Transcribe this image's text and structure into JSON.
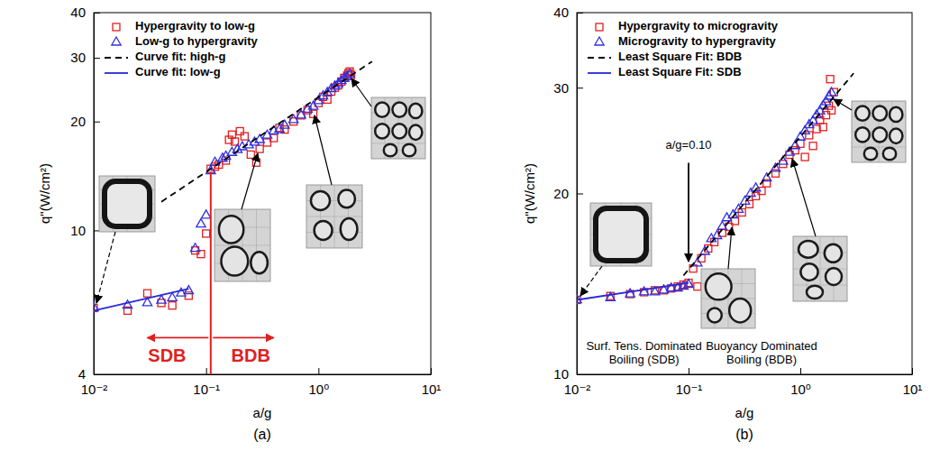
{
  "chart_data": [
    {
      "type": "scatter",
      "title": "(a)",
      "x_label": "a/g",
      "y_label": "q\"(W/cm²)",
      "log": true,
      "grid": false,
      "legend": "upper left",
      "xlim": [
        0.01,
        10
      ],
      "xticks": [
        {
          "value": 0.01,
          "label": "10⁻²"
        },
        {
          "value": 0.1,
          "label": "10⁻¹"
        },
        {
          "value": 1,
          "label": "10⁰"
        },
        {
          "value": 10,
          "label": "10¹"
        }
      ],
      "ylim": [
        4,
        40
      ],
      "yticks": [
        4,
        10,
        20,
        30,
        40
      ],
      "series": [
        {
          "name": "Hypergravity to low-g",
          "type": "scatter",
          "marker": "square",
          "color": "#e02020",
          "x": [
            0.01,
            0.02,
            0.03,
            0.04,
            0.05,
            0.07,
            0.08,
            0.09,
            0.1,
            0.11,
            0.12,
            0.13,
            0.15,
            0.16,
            0.17,
            0.18,
            0.2,
            0.22,
            0.25,
            0.28,
            0.3,
            0.35,
            0.4,
            0.45,
            0.5,
            0.6,
            0.7,
            0.8,
            0.9,
            1.0,
            1.1,
            1.2,
            1.3,
            1.4,
            1.5,
            1.6,
            1.7,
            1.8,
            1.85,
            1.9,
            1.95
          ],
          "values": [
            6.1,
            6.0,
            6.7,
            6.3,
            6.2,
            6.6,
            8.8,
            8.6,
            9.8,
            14.8,
            15.0,
            15.2,
            15.6,
            17.8,
            18.4,
            17.6,
            18.8,
            18.2,
            16.2,
            15.4,
            16.8,
            17.5,
            18.0,
            19.2,
            19.0,
            20.0,
            20.8,
            21.5,
            21.0,
            22.5,
            23.4,
            23.0,
            24.2,
            24.8,
            25.2,
            25.8,
            26.4,
            26.8,
            27.2,
            27.5,
            26.9
          ]
        },
        {
          "name": "Low-g to hypergravity",
          "type": "scatter",
          "marker": "triangle",
          "color": "#3030e0",
          "x": [
            0.01,
            0.02,
            0.03,
            0.04,
            0.05,
            0.06,
            0.07,
            0.08,
            0.09,
            0.1,
            0.11,
            0.12,
            0.14,
            0.15,
            0.17,
            0.19,
            0.21,
            0.24,
            0.27,
            0.3,
            0.35,
            0.4,
            0.45,
            0.5,
            0.6,
            0.7,
            0.8,
            0.9,
            1.0,
            1.1,
            1.2,
            1.3,
            1.4,
            1.5,
            1.6,
            1.7,
            1.8,
            1.9
          ],
          "values": [
            6.1,
            6.2,
            6.3,
            6.4,
            6.5,
            6.7,
            6.8,
            8.9,
            10.4,
            11.0,
            14.6,
            15.4,
            15.8,
            16.0,
            16.4,
            16.7,
            17.0,
            17.2,
            17.5,
            17.8,
            18.3,
            18.8,
            19.0,
            19.5,
            20.2,
            20.8,
            21.6,
            22.0,
            22.8,
            23.5,
            24.0,
            24.6,
            25.0,
            25.4,
            25.9,
            26.3,
            26.6,
            27.0
          ]
        },
        {
          "name": "Curve fit: high-g",
          "type": "line",
          "line_style": "dashed",
          "color": "#000000",
          "x": [
            0.04,
            3.0
          ],
          "values": [
            12.0,
            29.3
          ]
        },
        {
          "name": "Curve fit: low-g",
          "type": "line",
          "line_style": "solid",
          "color": "#2828d8",
          "x": [
            0.01,
            0.07
          ],
          "values": [
            6.0,
            6.9
          ]
        }
      ],
      "annotations": [
        {
          "type": "line",
          "x": [
            0.11,
            0.11
          ],
          "y": [
            4,
            14.5
          ],
          "color": "#e02020"
        },
        {
          "type": "arrow",
          "x": [
            0.105,
            0.03
          ],
          "y": [
            5.05,
            5.05
          ],
          "color": "#e02020"
        },
        {
          "type": "arrow",
          "x": [
            0.115,
            0.4
          ],
          "y": [
            5.05,
            5.05
          ],
          "color": "#e02020"
        },
        {
          "type": "text",
          "text": "SDB",
          "x": 0.045,
          "y": 4.45,
          "color": "#e02020"
        },
        {
          "type": "text",
          "text": "BDB",
          "x": 0.25,
          "y": 4.45,
          "color": "#e02020"
        }
      ]
    },
    {
      "type": "scatter",
      "title": "(b)",
      "x_label": "a/g",
      "y_label": "q\"(W/cm²)",
      "log": true,
      "grid": false,
      "legend": "upper left",
      "xlim": [
        0.01,
        10
      ],
      "xticks": [
        {
          "value": 0.01,
          "label": "10⁻²"
        },
        {
          "value": 0.1,
          "label": "10⁻¹"
        },
        {
          "value": 1,
          "label": "10⁰"
        },
        {
          "value": 10,
          "label": "10¹"
        }
      ],
      "ylim": [
        10,
        40
      ],
      "yticks": [
        10,
        20,
        30,
        40
      ],
      "series": [
        {
          "name": "Hypergravity to microgravity",
          "type": "scatter",
          "marker": "square",
          "color": "#e02020",
          "x": [
            0.01,
            0.02,
            0.03,
            0.04,
            0.05,
            0.06,
            0.07,
            0.08,
            0.09,
            0.1,
            0.12,
            0.11,
            0.13,
            0.15,
            0.17,
            0.2,
            0.23,
            0.26,
            0.3,
            0.35,
            0.4,
            0.45,
            0.5,
            0.6,
            0.7,
            0.8,
            0.9,
            1.0,
            1.1,
            1.2,
            1.3,
            1.4,
            1.5,
            1.6,
            1.7,
            1.8,
            1.85,
            1.9,
            2.0
          ],
          "values": [
            13.3,
            13.5,
            13.6,
            13.7,
            13.8,
            13.8,
            13.9,
            14.0,
            14.1,
            14.2,
            14.0,
            15.0,
            15.6,
            16.2,
            16.6,
            17.2,
            17.6,
            18.0,
            18.6,
            19.2,
            19.8,
            20.2,
            20.8,
            21.6,
            22.4,
            23.2,
            23.6,
            24.2,
            23.0,
            25.0,
            24.0,
            25.6,
            26.5,
            25.8,
            27.0,
            28.0,
            31.0,
            27.5,
            29.5
          ]
        },
        {
          "name": "Microgravity to hypergravity",
          "type": "scatter",
          "marker": "triangle",
          "color": "#3030e0",
          "x": [
            0.01,
            0.02,
            0.03,
            0.04,
            0.05,
            0.06,
            0.07,
            0.08,
            0.09,
            0.1,
            0.12,
            0.14,
            0.16,
            0.18,
            0.2,
            0.22,
            0.25,
            0.28,
            0.32,
            0.36,
            0.4,
            0.5,
            0.6,
            0.7,
            0.8,
            0.9,
            1.0,
            1.1,
            1.2,
            1.3,
            1.4,
            1.5,
            1.6,
            1.7,
            1.8,
            1.9
          ],
          "values": [
            13.3,
            13.4,
            13.6,
            13.7,
            13.7,
            13.8,
            13.9,
            13.9,
            14.0,
            14.1,
            15.3,
            16.0,
            16.8,
            17.0,
            17.6,
            18.2,
            18.4,
            18.8,
            19.4,
            20.0,
            20.4,
            21.2,
            22.0,
            22.6,
            23.4,
            24.0,
            24.8,
            25.4,
            26.0,
            26.4,
            27.0,
            27.4,
            28.0,
            28.4,
            29.0,
            29.4
          ]
        },
        {
          "name": "Least Square Fit: BDB",
          "type": "line",
          "line_style": "dashed",
          "color": "#000000",
          "x": [
            0.09,
            3.0
          ],
          "values": [
            14.6,
            31.7
          ]
        },
        {
          "name": "Least Square Fit: SDB",
          "type": "line",
          "line_style": "solid",
          "color": "#2828d8",
          "x": [
            0.01,
            0.1
          ],
          "values": [
            13.3,
            14.2
          ]
        }
      ],
      "annotations": [
        {
          "type": "text",
          "text": "a/g=0.10",
          "x": 0.1,
          "y": 24,
          "color": "#000000"
        },
        {
          "type": "arrow",
          "x": [
            0.1,
            0.1
          ],
          "y": [
            22.5,
            15.4
          ],
          "color": "#000000"
        },
        {
          "type": "text",
          "text": "Surf. Tens. Dominated Boiling (SDB)",
          "x": 0.04,
          "y": 11.1,
          "color": "#000000"
        },
        {
          "type": "text",
          "text": "Buoyancy Dominated Boiling (BDB)",
          "x": 0.45,
          "y": 11.1,
          "color": "#000000"
        }
      ]
    }
  ]
}
